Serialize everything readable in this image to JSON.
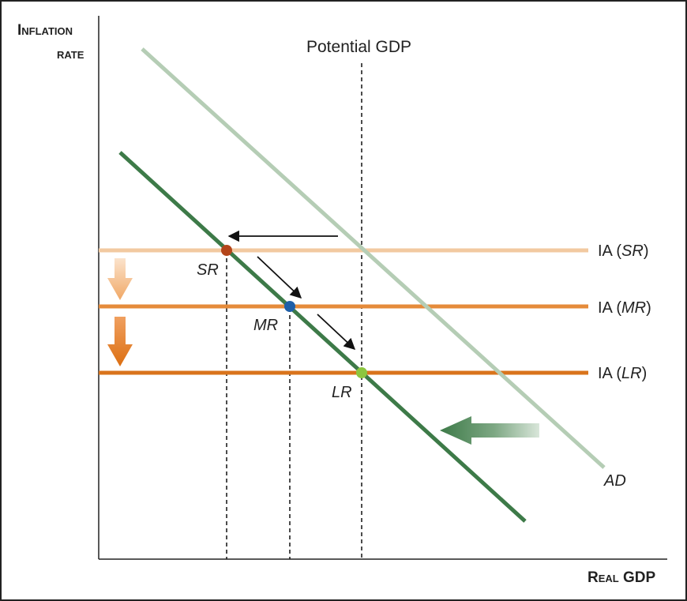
{
  "axes": {
    "y_label_line1": "Inflation",
    "y_label_line2": "rate",
    "x_label": "Real GDP"
  },
  "potential_gdp_label": "Potential GDP",
  "curves": {
    "ia_sr": {
      "prefix": "IA (",
      "italic": "SR",
      "suffix": ")",
      "color": "#f2c9a0"
    },
    "ia_mr": {
      "prefix": "IA (",
      "italic": "MR",
      "suffix": ")",
      "color": "#e58b3a"
    },
    "ia_lr": {
      "prefix": "IA (",
      "italic": "LR",
      "suffix": ")",
      "color": "#d9741c"
    },
    "ad_original": {
      "label": "AD",
      "color": "#b5cdb5"
    },
    "ad_shifted": {
      "color": "#3d7a48"
    }
  },
  "points": {
    "sr": {
      "label": "SR",
      "color": "#b4451a"
    },
    "mr": {
      "label": "MR",
      "color": "#1f5fa8"
    },
    "lr": {
      "label": "LR",
      "color": "#8cc63f"
    }
  },
  "colors": {
    "frame": "#222222",
    "arrow_black": "#111111",
    "arrow_orange_light": "#f0b27a",
    "arrow_orange_dark": "#e07a1f",
    "arrow_green": "#3d7a48"
  }
}
